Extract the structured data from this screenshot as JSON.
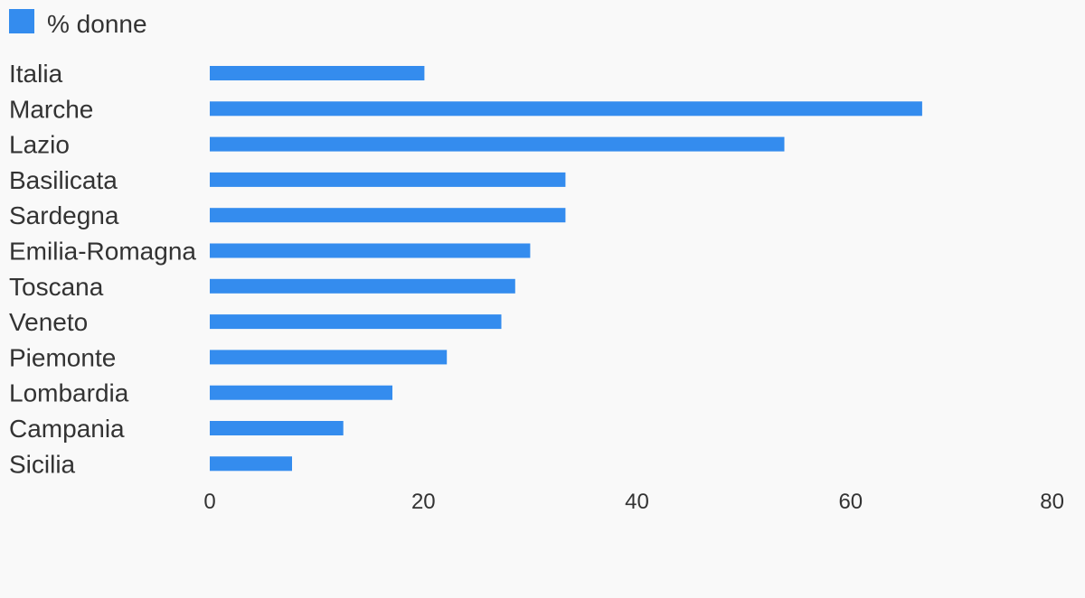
{
  "chart_data": {
    "type": "bar",
    "orientation": "horizontal",
    "categories": [
      "Italia",
      "Marche",
      "Lazio",
      "Basilicata",
      "Sardegna",
      "Emilia-Romagna",
      "Toscana",
      "Veneto",
      "Piemonte",
      "Lombardia",
      "Campania",
      "Sicilia"
    ],
    "series": [
      {
        "name": "% donne",
        "color": "#348cee",
        "values": [
          20.1,
          66.7,
          53.8,
          33.3,
          33.3,
          30.0,
          28.6,
          27.3,
          22.2,
          17.1,
          12.5,
          7.7
        ]
      }
    ],
    "xlim": [
      0,
      80
    ],
    "xticks": [
      "0",
      "20",
      "40",
      "60",
      "80"
    ],
    "legend_position": "top-left",
    "grid": false,
    "title": "",
    "xlabel": "",
    "ylabel": ""
  }
}
